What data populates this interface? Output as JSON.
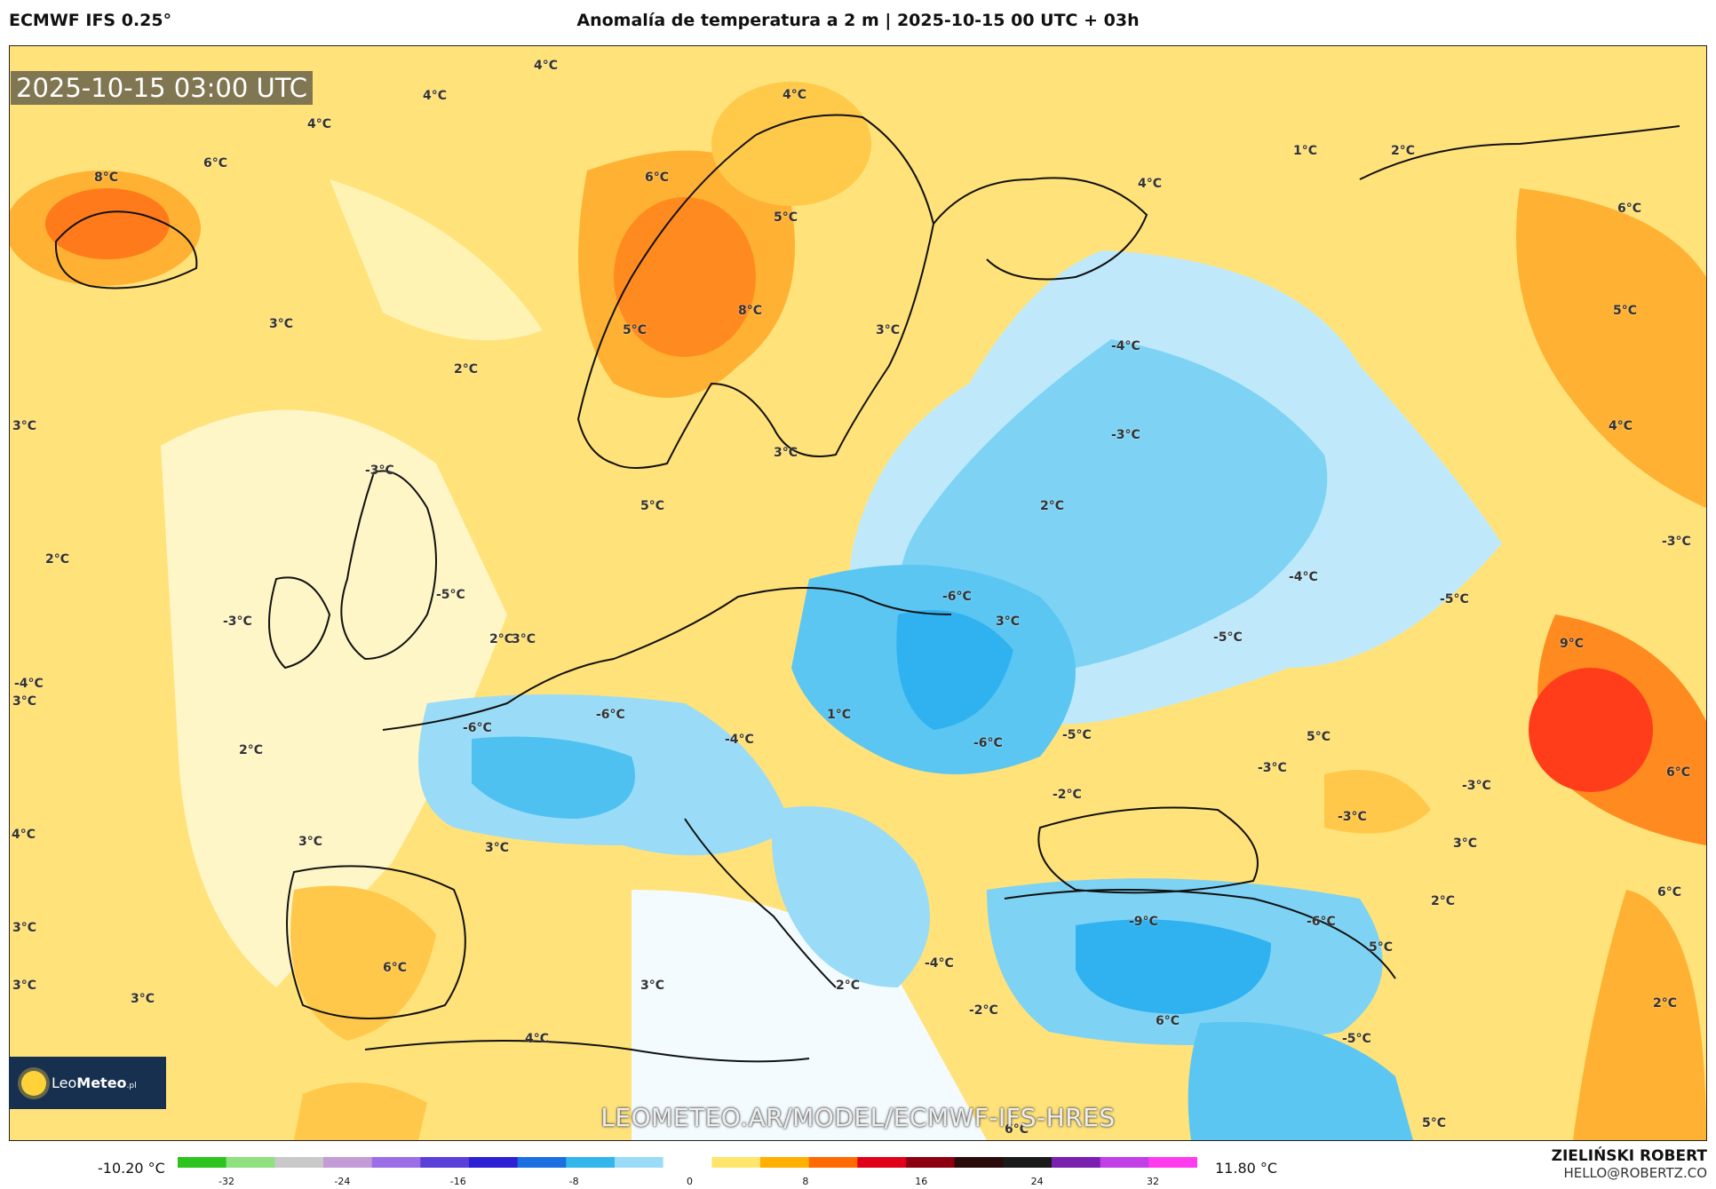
{
  "header": {
    "model": "ECMWF IFS 0.25°",
    "title": "Anomalía de temperatura a 2 m | 2025-10-15 00 UTC + 03h"
  },
  "map": {
    "timestamp": "2025-10-15 03:00 UTC",
    "watermark": "LEOMETEO.AR/MODEL/ECMWF-IFS-HRES",
    "logo": {
      "prefix": "Leo",
      "suffix": "Meteo",
      "sub": ".pl"
    },
    "labels": [
      {
        "t": "4°C"
      },
      {
        "t": "4°C"
      },
      {
        "t": "4°C"
      },
      {
        "t": "4°C"
      },
      {
        "t": "6°C"
      },
      {
        "t": "8°C"
      },
      {
        "t": "6°C"
      },
      {
        "t": "5°C"
      },
      {
        "t": "1°C"
      },
      {
        "t": "2°C"
      },
      {
        "t": "4°C"
      },
      {
        "t": "6°C"
      },
      {
        "t": "8°C"
      },
      {
        "t": "5°C"
      },
      {
        "t": "3°C"
      },
      {
        "t": "3°C"
      },
      {
        "t": "2°C"
      },
      {
        "t": "-4°C"
      },
      {
        "t": "5°C"
      },
      {
        "t": "3°C"
      },
      {
        "t": "3°C"
      },
      {
        "t": "-3°C"
      },
      {
        "t": "4°C"
      },
      {
        "t": "-3°C"
      },
      {
        "t": "5°C"
      },
      {
        "t": "2°C"
      },
      {
        "t": "2°C"
      },
      {
        "t": "-3°C"
      },
      {
        "t": "-5°C"
      },
      {
        "t": "-4°C"
      },
      {
        "t": "-3°C"
      },
      {
        "t": "-6°C"
      },
      {
        "t": "-5°C"
      },
      {
        "t": "3°C"
      },
      {
        "t": "2°C"
      },
      {
        "t": "3°C"
      },
      {
        "t": "-5°C"
      },
      {
        "t": "9°C"
      },
      {
        "t": "3°C"
      },
      {
        "t": "-6°C"
      },
      {
        "t": "1°C"
      },
      {
        "t": "-6°C"
      },
      {
        "t": "-5°C"
      },
      {
        "t": "5°C"
      },
      {
        "t": "2°C"
      },
      {
        "t": "-4°C"
      },
      {
        "t": "-6°C"
      },
      {
        "t": "-4°C"
      },
      {
        "t": "-3°C"
      },
      {
        "t": "6°C"
      },
      {
        "t": "4°C"
      },
      {
        "t": "3°C"
      },
      {
        "t": "-2°C"
      },
      {
        "t": "3°C"
      },
      {
        "t": "-3°C"
      },
      {
        "t": "-3°C"
      },
      {
        "t": "3°C"
      },
      {
        "t": "3°C"
      },
      {
        "t": "-9°C"
      },
      {
        "t": "-6°C"
      },
      {
        "t": "2°C"
      },
      {
        "t": "5°C"
      },
      {
        "t": "6°C"
      },
      {
        "t": "3°C"
      },
      {
        "t": "-2°C"
      },
      {
        "t": "-4°C"
      },
      {
        "t": "2°C"
      },
      {
        "t": "6°C"
      },
      {
        "t": "3°C"
      },
      {
        "t": "3°C"
      },
      {
        "t": "-5°C"
      },
      {
        "t": "4°C"
      },
      {
        "t": "6°C"
      },
      {
        "t": "2°C"
      },
      {
        "t": "6°C"
      },
      {
        "t": "5°C"
      }
    ]
  },
  "legend": {
    "min": "-10.20 °C",
    "max": "11.80 °C",
    "ticks": [
      "-32",
      "-24",
      "-16",
      "-8",
      "0",
      "8",
      "16",
      "24",
      "32"
    ],
    "colors": [
      "#2ec41e",
      "#8fe07e",
      "#c9c9c9",
      "#c39cd6",
      "#9b6ee8",
      "#5b3fd9",
      "#2c1fd4",
      "#1b6fe0",
      "#33b6ea",
      "#9adcf7",
      "#ffffff",
      "#ffe56b",
      "#ffb000",
      "#ff6a00",
      "#e0001a",
      "#8c0010",
      "#2a0a0a",
      "#1a1a1a",
      "#7a1fb0",
      "#c23ee6",
      "#ff3bf0"
    ]
  },
  "credit": {
    "name": "ZIELIŃSKI ROBERT",
    "email": "HELLO@ROBERTZ.CO"
  }
}
